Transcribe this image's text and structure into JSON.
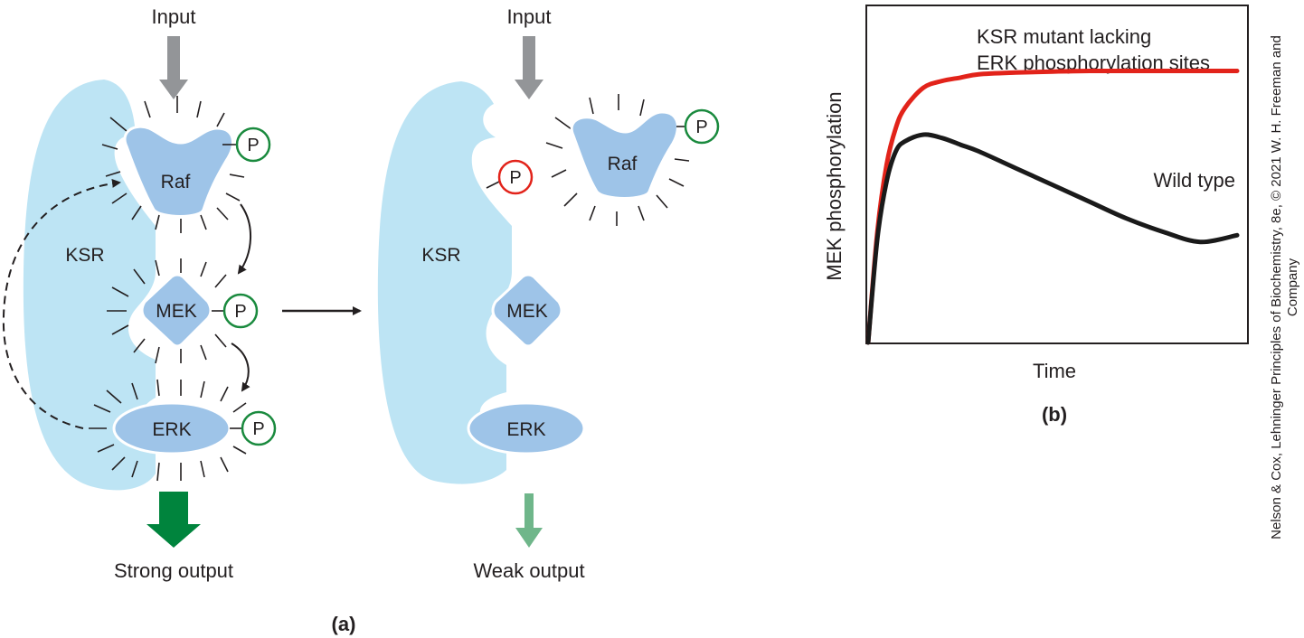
{
  "panel_a": {
    "left": {
      "input": "Input",
      "ksr": "KSR",
      "raf": "Raf",
      "mek": "MEK",
      "erk": "ERK",
      "phos_raf": "P",
      "phos_mek": "P",
      "phos_erk": "P",
      "output": "Strong output"
    },
    "right": {
      "input": "Input",
      "ksr": "KSR",
      "raf": "Raf",
      "mek": "MEK",
      "erk": "ERK",
      "phos_ksr": "P",
      "phos_raf": "P",
      "output": "Weak output"
    },
    "label": "(a)"
  },
  "panel_b": {
    "label": "(b)",
    "credit_line1": "Nelson & Cox, Lehninger Principles of Biochemistry, 8e, © 2021 W. H. Freeman and",
    "credit_line2": "Company"
  },
  "colors": {
    "ksr_fill": "#bde4f4",
    "protein_fill": "#9ec4e8",
    "phospho_green": "#1a8a3e",
    "phospho_red": "#e2231a",
    "arrow_gray": "#939598",
    "strong_output": "#00843d",
    "weak_output": "#6fb68a",
    "mutant_curve": "#e2231a",
    "wildtype_curve": "#1a1a1a"
  },
  "chart_data": {
    "type": "line",
    "title": "",
    "xlabel": "Time",
    "ylabel": "MEK phosphorylation",
    "x_ticks": [],
    "y_ticks": [],
    "xlim": [
      0,
      10
    ],
    "ylim": [
      0,
      1
    ],
    "series": [
      {
        "name": "KSR mutant lacking ERK phosphorylation sites",
        "color": "#e2231a",
        "x": [
          0,
          0.25,
          0.5,
          0.75,
          1,
          1.5,
          2,
          2.5,
          3,
          4,
          5,
          6,
          7,
          8,
          9,
          10
        ],
        "y": [
          0,
          0.33,
          0.53,
          0.64,
          0.7,
          0.76,
          0.78,
          0.79,
          0.8,
          0.805,
          0.808,
          0.81,
          0.81,
          0.81,
          0.81,
          0.81
        ]
      },
      {
        "name": "Wild type",
        "color": "#1a1a1a",
        "x": [
          0,
          0.25,
          0.5,
          0.75,
          1,
          1.5,
          2,
          2.5,
          3,
          4,
          5,
          6,
          7,
          8,
          9,
          10
        ],
        "y": [
          0,
          0.31,
          0.48,
          0.57,
          0.6,
          0.62,
          0.61,
          0.59,
          0.57,
          0.52,
          0.47,
          0.42,
          0.37,
          0.33,
          0.3,
          0.32
        ]
      }
    ]
  }
}
